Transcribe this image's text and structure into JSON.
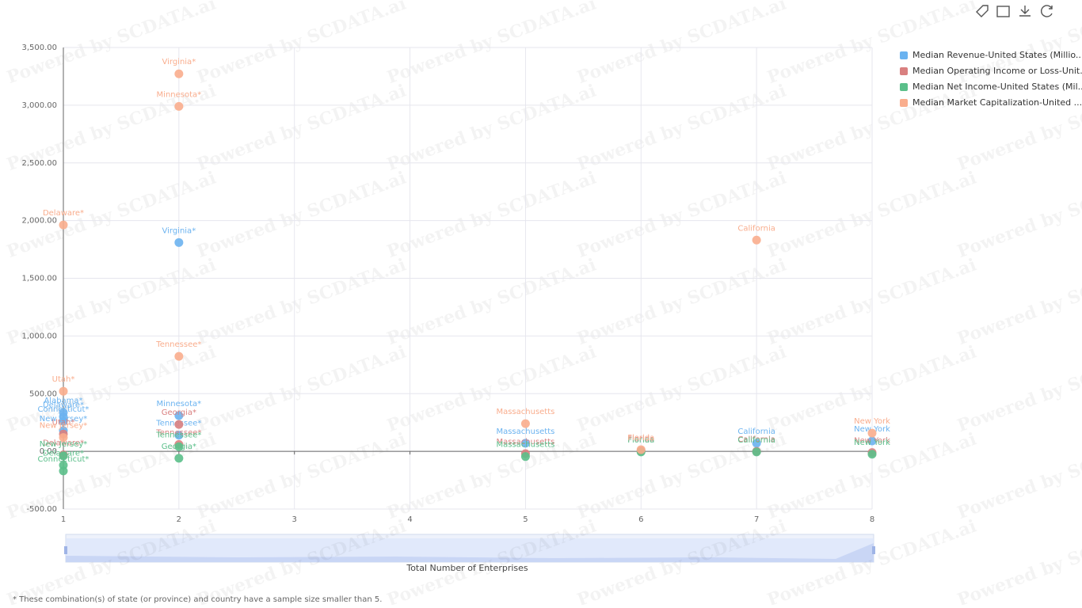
{
  "chart_data": {
    "type": "scatter",
    "watermark": "Powered by SCDATA.ai",
    "x_label": "Total Number of Enterprises",
    "footnote": "* These combination(s) of state (or province) and country have a sample size smaller than 5.",
    "xlim": [
      1,
      8
    ],
    "xticks": [
      1,
      2,
      3,
      4,
      5,
      6,
      7,
      8
    ],
    "ylim": [
      -500,
      3500
    ],
    "yticks": [
      {
        "value": -500,
        "label": "-500.00"
      },
      {
        "value": 0,
        "label": "0.00"
      },
      {
        "value": 500,
        "label": "500.00"
      },
      {
        "value": 1000,
        "label": "1,000.00"
      },
      {
        "value": 1500,
        "label": "1,500.00"
      },
      {
        "value": 2000,
        "label": "2,000.00"
      },
      {
        "value": 2500,
        "label": "2,500.00"
      },
      {
        "value": 3000,
        "label": "3,000.00"
      },
      {
        "value": 3500,
        "label": "3,500.00"
      }
    ],
    "grid": true,
    "series": [
      {
        "name": "Median Revenue-United States (Millio...",
        "color": "#6bb3f0",
        "x": [
          2,
          2,
          2,
          1,
          1,
          1,
          1,
          5,
          7,
          8
        ],
        "values": [
          1810,
          310,
          140,
          336,
          300,
          260,
          180,
          70,
          70,
          90
        ],
        "point_labels": [
          "Virginia*",
          "Minnesota*",
          "Tennessee*",
          "Alabama*",
          "Delaware*",
          "Connecticut*",
          "New Jersey*",
          "Massachusetts",
          "California",
          "New York"
        ]
      },
      {
        "name": "Median Operating Income or Loss-Unit...",
        "color": "#d98080",
        "x": [
          2,
          2,
          1,
          1,
          5,
          6,
          7,
          8
        ],
        "values": [
          233,
          60,
          150,
          -30,
          -20,
          5,
          0,
          -10
        ],
        "point_labels": [
          "Georgia*",
          "Tennessee*",
          "Utah*",
          "Delaware*",
          "Massachusetts",
          "Florida",
          "California",
          "New York"
        ]
      },
      {
        "name": "Median Net Income-United States (Mil...",
        "color": "#5bbf8a",
        "x": [
          1,
          1,
          1,
          2,
          2,
          5,
          6,
          7,
          8
        ],
        "values": [
          -170,
          -120,
          -40,
          -60,
          40,
          -45,
          -5,
          -5,
          -25
        ],
        "point_labels": [
          "Connecticut*",
          "Delaware*",
          "New Jersey*",
          "Georgia*",
          "Tennessee*",
          "Massachusetts",
          "Florida",
          "California",
          "New York"
        ]
      },
      {
        "name": "Median Market Capitalization-United ...",
        "color": "#f9ad8d",
        "x": [
          1,
          2,
          2,
          2,
          1,
          5,
          6,
          7,
          8,
          1
        ],
        "values": [
          1962,
          3272,
          2990,
          823,
          521,
          240,
          15,
          1831,
          158,
          120
        ],
        "point_labels": [
          "Delaware*",
          "Virginia*",
          "Minnesota*",
          "Tennessee*",
          "Utah*",
          "Massachusetts",
          "Florida",
          "California",
          "New York",
          "New Jersey*"
        ]
      }
    ]
  }
}
